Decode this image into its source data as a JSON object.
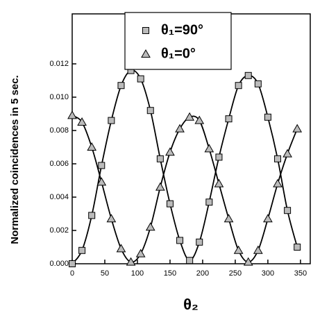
{
  "chart_data": {
    "type": "scatter",
    "xlabel": "θ₂",
    "ylabel": "Normalized coincidences in 5 sec.",
    "xlim": [
      0,
      365
    ],
    "ylim": [
      0,
      0.015
    ],
    "xticks": [
      0,
      50,
      100,
      150,
      200,
      250,
      300,
      350
    ],
    "yticks": [
      {
        "value": 0,
        "label": "0.000"
      },
      {
        "value": 0.002,
        "label": "0.002"
      },
      {
        "value": 0.004,
        "label": "0.004"
      },
      {
        "value": 0.006,
        "label": "0.006"
      },
      {
        "value": 0.008,
        "label": "0.008"
      },
      {
        "value": 0.01,
        "label": "0.010"
      },
      {
        "value": 0.012,
        "label": "0.012"
      }
    ],
    "x": [
      0,
      15,
      30,
      45,
      60,
      75,
      90,
      105,
      120,
      135,
      150,
      165,
      180,
      195,
      210,
      225,
      240,
      255,
      270,
      285,
      300,
      315,
      330,
      345
    ],
    "series": [
      {
        "name": "θ₁=90°",
        "marker": "square",
        "color": "#bbbbbb",
        "values": [
          0.0,
          0.0008,
          0.0029,
          0.0059,
          0.0086,
          0.0107,
          0.0116,
          0.0111,
          0.0092,
          0.0063,
          0.0036,
          0.0014,
          0.0002,
          0.0013,
          0.0037,
          0.0064,
          0.0087,
          0.0107,
          0.0113,
          0.0108,
          0.0088,
          0.0063,
          0.0032,
          0.001
        ]
      },
      {
        "name": "θ₁=0°",
        "marker": "triangle",
        "color": "#bbbbbb",
        "values": [
          0.0089,
          0.0085,
          0.007,
          0.0049,
          0.0027,
          0.0009,
          0.0001,
          0.0006,
          0.0022,
          0.0046,
          0.0067,
          0.0081,
          0.0088,
          0.0086,
          0.0069,
          0.0048,
          0.0027,
          0.0008,
          0.0001,
          0.0008,
          0.0027,
          0.0048,
          0.0066,
          0.0081
        ]
      }
    ]
  }
}
